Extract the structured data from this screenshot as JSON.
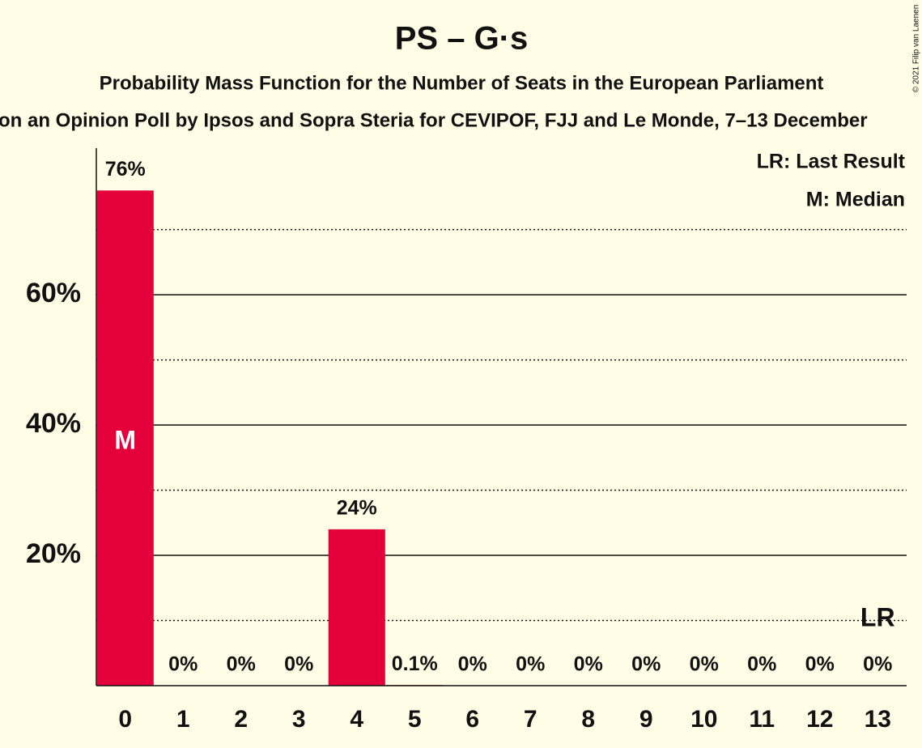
{
  "chart_data": {
    "type": "bar",
    "title": "PS – G·s",
    "subtitle": "Probability Mass Function for the Number of Seats in the European Parliament",
    "subtitle2": "on an Opinion Poll by Ipsos and Sopra Steria for CEVIPOF, FJJ and Le Monde, 7–13 December",
    "copyright": "© 2021 Filip van Laenen",
    "legend": [
      "LR: Last Result",
      "M: Median"
    ],
    "categories": [
      "0",
      "1",
      "2",
      "3",
      "4",
      "5",
      "6",
      "7",
      "8",
      "9",
      "10",
      "11",
      "12",
      "13"
    ],
    "values": [
      76,
      0,
      0,
      0,
      24,
      0.1,
      0,
      0,
      0,
      0,
      0,
      0,
      0,
      0
    ],
    "value_labels": [
      "76%",
      "0%",
      "0%",
      "0%",
      "24%",
      "0.1%",
      "0%",
      "0%",
      "0%",
      "0%",
      "0%",
      "0%",
      "0%",
      "0%"
    ],
    "color": "#e4003b",
    "ylim": [
      0,
      82.5
    ],
    "yticks": [
      {
        "value": 20,
        "label": "20%"
      },
      {
        "value": 40,
        "label": "40%"
      },
      {
        "value": 60,
        "label": "60%"
      }
    ],
    "minor_yticks": [
      10,
      30,
      50,
      70
    ],
    "grid": true,
    "annotations": [
      {
        "label": "M",
        "index": 0
      },
      {
        "label": "LR",
        "index": 13
      }
    ]
  }
}
